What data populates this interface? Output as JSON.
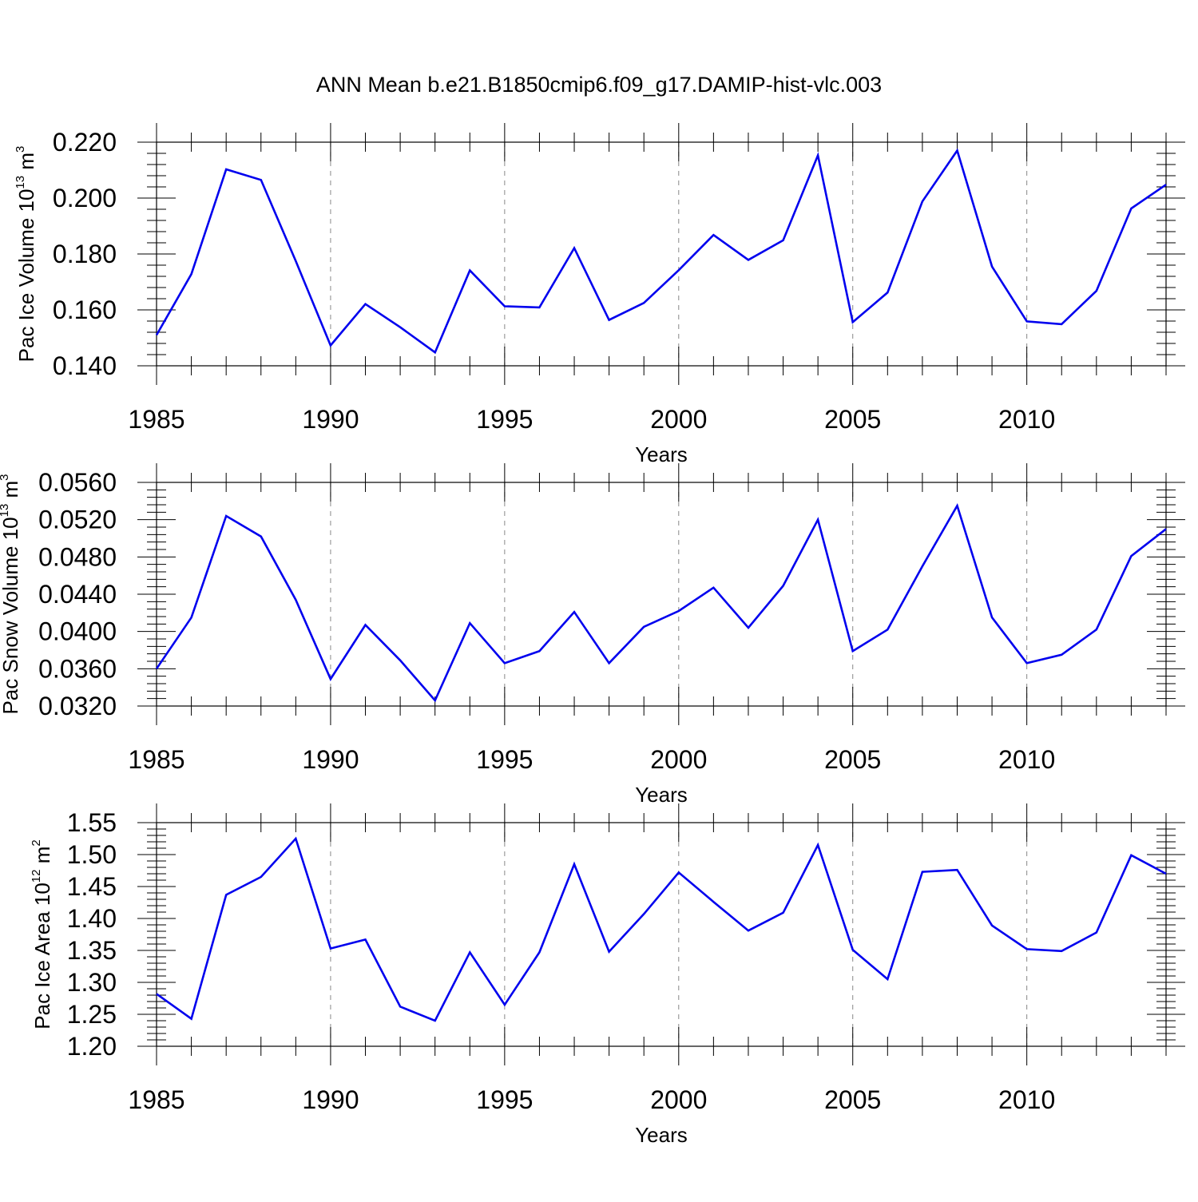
{
  "title": "ANN Mean b.e21.B1850cmip6.f09_g17.DAMIP-hist-vlc.003",
  "colors": {
    "line": "#0000ee",
    "axis": "#000000",
    "grid": "#888888"
  },
  "chart_data": [
    {
      "type": "line",
      "ylabel": {
        "main": "Pac Ice Volume 10",
        "exp": "13",
        "unit": " m",
        "unit_exp": "3"
      },
      "xlabel": "Years",
      "xlim": [
        1985,
        2014
      ],
      "ylim": [
        0.14,
        0.22
      ],
      "x_ticks": [
        1985,
        1990,
        1995,
        2000,
        2005,
        2010
      ],
      "y_ticks": [
        "0.140",
        "0.160",
        "0.180",
        "0.200",
        "0.220"
      ],
      "grid_x": [
        1990,
        1995,
        2000,
        2005,
        2010
      ],
      "x": [
        1985,
        1986,
        1987,
        1988,
        1989,
        1990,
        1991,
        1992,
        1993,
        1994,
        1995,
        1996,
        1997,
        1998,
        1999,
        2000,
        2001,
        2002,
        2003,
        2004,
        2005,
        2006,
        2007,
        2008,
        2009,
        2010,
        2011,
        2012,
        2013,
        2014
      ],
      "values": [
        0.151,
        0.1728,
        0.2103,
        0.2065,
        0.1775,
        0.1473,
        0.1621,
        0.1538,
        0.1448,
        0.1741,
        0.1613,
        0.1609,
        0.1821,
        0.1564,
        0.1625,
        0.1742,
        0.1868,
        0.1779,
        0.1849,
        0.2153,
        0.1556,
        0.1662,
        0.1988,
        0.217,
        0.1755,
        0.1559,
        0.1549,
        0.1668,
        0.1963,
        0.2048
      ]
    },
    {
      "type": "line",
      "ylabel": {
        "main": "Pac Snow Volume 10",
        "exp": "13",
        "unit": " m",
        "unit_exp": "3"
      },
      "xlabel": "Years",
      "xlim": [
        1985,
        2014
      ],
      "ylim": [
        0.032,
        0.056
      ],
      "x_ticks": [
        1985,
        1990,
        1995,
        2000,
        2005,
        2010
      ],
      "y_ticks": [
        "0.0320",
        "0.0360",
        "0.0400",
        "0.0440",
        "0.0480",
        "0.0520",
        "0.0560"
      ],
      "grid_x": [
        1990,
        1995,
        2000,
        2005,
        2010
      ],
      "x": [
        1985,
        1986,
        1987,
        1988,
        1989,
        1990,
        1991,
        1992,
        1993,
        1994,
        1995,
        1996,
        1997,
        1998,
        1999,
        2000,
        2001,
        2002,
        2003,
        2004,
        2005,
        2006,
        2007,
        2008,
        2009,
        2010,
        2011,
        2012,
        2013,
        2014
      ],
      "values": [
        0.036,
        0.0415,
        0.0524,
        0.0502,
        0.0434,
        0.0349,
        0.0407,
        0.0369,
        0.0326,
        0.0409,
        0.0366,
        0.0379,
        0.0421,
        0.0366,
        0.0405,
        0.0422,
        0.0447,
        0.0404,
        0.0449,
        0.052,
        0.0379,
        0.0402,
        0.047,
        0.0535,
        0.0415,
        0.0366,
        0.0375,
        0.0402,
        0.0481,
        0.051
      ]
    },
    {
      "type": "line",
      "ylabel": {
        "main": "Pac Ice Area 10",
        "exp": "12",
        "unit": " m",
        "unit_exp": "2"
      },
      "xlabel": "Years",
      "xlim": [
        1985,
        2014
      ],
      "ylim": [
        1.2,
        1.55
      ],
      "x_ticks": [
        1985,
        1990,
        1995,
        2000,
        2005,
        2010
      ],
      "y_ticks": [
        "1.20",
        "1.25",
        "1.30",
        "1.35",
        "1.40",
        "1.45",
        "1.50",
        "1.55"
      ],
      "grid_x": [
        1990,
        1995,
        2000,
        2005,
        2010
      ],
      "x": [
        1985,
        1986,
        1987,
        1988,
        1989,
        1990,
        1991,
        1992,
        1993,
        1994,
        1995,
        1996,
        1997,
        1998,
        1999,
        2000,
        2001,
        2002,
        2003,
        2004,
        2005,
        2006,
        2007,
        2008,
        2009,
        2010,
        2011,
        2012,
        2013,
        2014
      ],
      "values": [
        1.282,
        1.243,
        1.437,
        1.465,
        1.525,
        1.353,
        1.367,
        1.262,
        1.24,
        1.347,
        1.265,
        1.347,
        1.485,
        1.348,
        1.407,
        1.472,
        1.426,
        1.381,
        1.409,
        1.515,
        1.351,
        1.305,
        1.473,
        1.476,
        1.389,
        1.352,
        1.349,
        1.378,
        1.499,
        1.47
      ]
    }
  ]
}
